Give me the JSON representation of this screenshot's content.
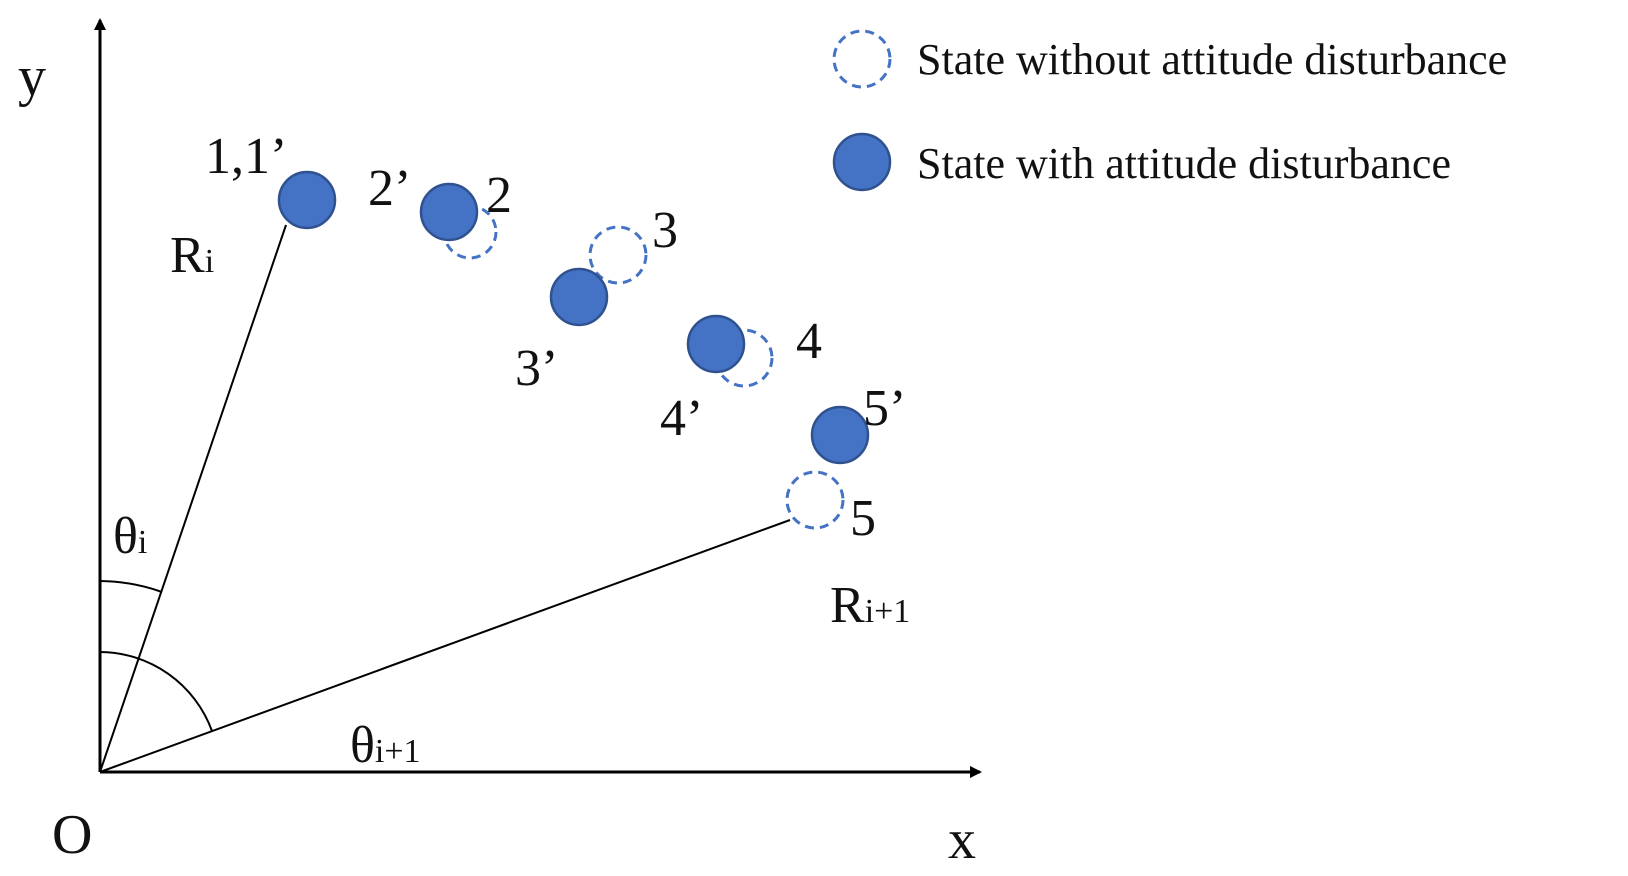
{
  "axes": {
    "x_label": "x",
    "y_label": "y",
    "origin_label": "O"
  },
  "radii": [
    {
      "label": "R",
      "subscript": "i"
    },
    {
      "label": "R",
      "subscript": "i+1"
    }
  ],
  "angles": [
    {
      "label": "θ",
      "subscript": "i"
    },
    {
      "label": "θ",
      "subscript": "i+1"
    }
  ],
  "points": [
    {
      "label": "1,1’"
    },
    {
      "label": "2’"
    },
    {
      "label": "2"
    },
    {
      "label": "3"
    },
    {
      "label": "3’"
    },
    {
      "label": "4"
    },
    {
      "label": "4’"
    },
    {
      "label": "5’"
    },
    {
      "label": "5"
    }
  ],
  "legend": [
    {
      "text": "State without attitude disturbance",
      "style": "dashed-circle"
    },
    {
      "text": "State with attitude disturbance",
      "style": "filled-circle"
    }
  ],
  "colors": {
    "accent": "#4472C4",
    "accent_edge": "#2F528F",
    "line": "#000000"
  }
}
